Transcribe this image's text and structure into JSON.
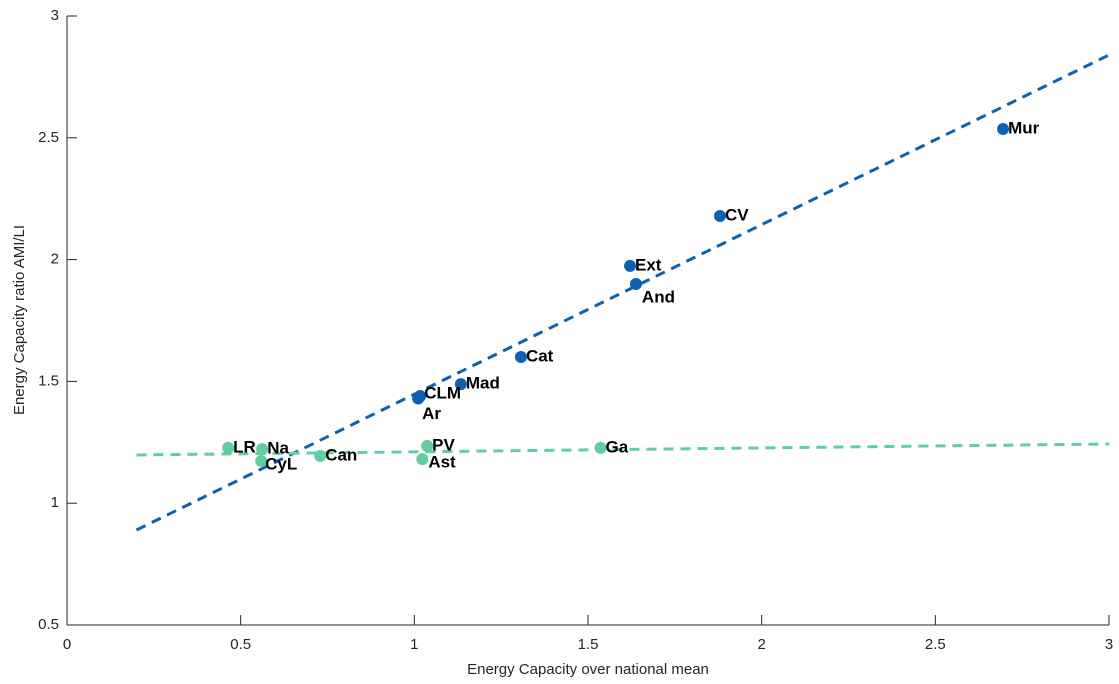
{
  "chart_data": {
    "type": "scatter",
    "xlabel": "Energy Capacity over national mean",
    "ylabel": "Energy Capacity ratio AMI/LI",
    "xlim": [
      0,
      3
    ],
    "ylim": [
      0.5,
      3
    ],
    "xticks": [
      0,
      0.5,
      1,
      1.5,
      2,
      2.5,
      3
    ],
    "yticks": [
      0.5,
      1,
      1.5,
      2,
      2.5,
      3
    ],
    "grid": false,
    "series": [
      {
        "color": "#0b62b5",
        "labels": [
          "Mur",
          "CV",
          "Ext",
          "And",
          "Cat",
          "Mad",
          "CLM",
          "Ar"
        ],
        "x": [
          2.695,
          1.88,
          1.621,
          1.638,
          1.307,
          1.134,
          1.017,
          1.011
        ],
        "values": [
          2.536,
          2.179,
          1.974,
          1.9,
          1.6,
          1.489,
          1.44,
          1.43
        ]
      },
      {
        "color": "#5fcf9f",
        "labels": [
          "LR",
          "Na",
          "CyL",
          "Can",
          "PV",
          "Ast",
          "Ga"
        ],
        "x": [
          0.464,
          0.562,
          0.559,
          0.729,
          1.037,
          1.023,
          1.536
        ],
        "values": [
          1.227,
          1.222,
          1.173,
          1.194,
          1.235,
          1.181,
          1.227
        ]
      }
    ],
    "trend_lines": [
      {
        "color": "#0b62b5",
        "x": [
          0.2,
          3
        ],
        "values": [
          0.89,
          2.84
        ]
      },
      {
        "color": "#5fcf9f",
        "x": [
          0.2,
          3
        ],
        "values": [
          1.198,
          1.243
        ]
      }
    ]
  }
}
